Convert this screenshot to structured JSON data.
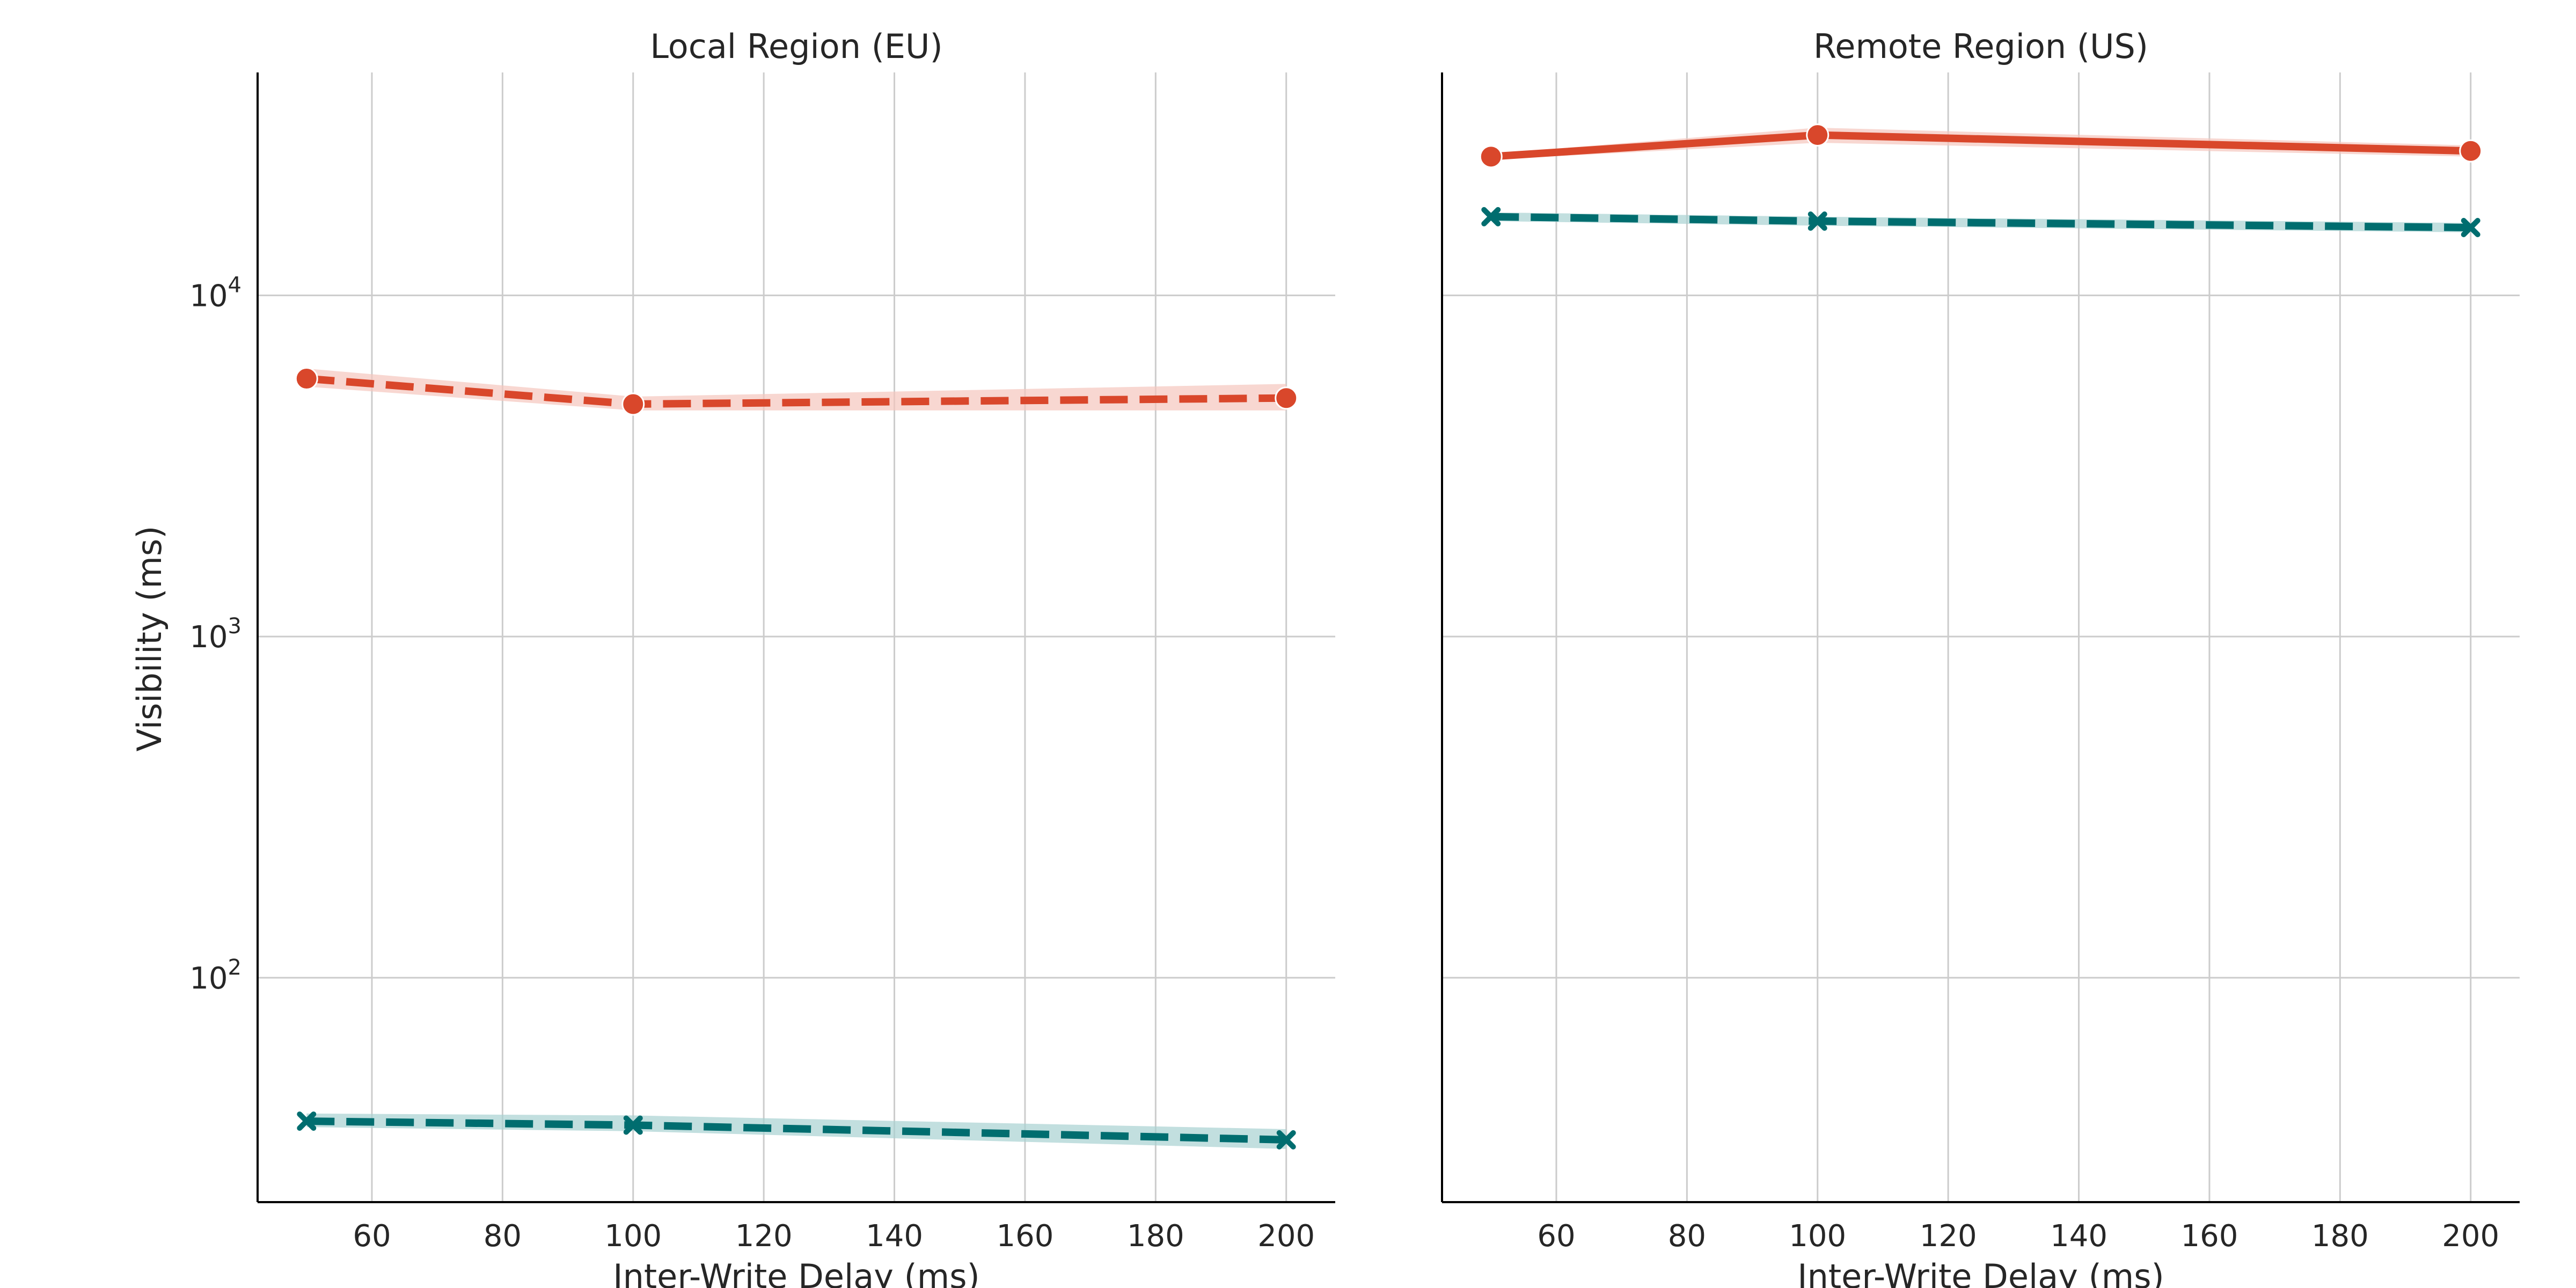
{
  "figure": {
    "ylabel": "Visibility (ms)",
    "colors": {
      "strong": "#d9472b",
      "eventual": "#006d6f",
      "strong_band": "#f5c6bd",
      "eventual_band": "#a8d2d2",
      "grid": "#cccccc",
      "axis": "#000000"
    }
  },
  "chart_data": [
    {
      "type": "line",
      "title": "Local Region (EU)",
      "xlabel": "Inter-Write Delay (ms)",
      "ylabel": "Visibility (ms)",
      "yscale": "log",
      "xlim": [
        42.5,
        207.5
      ],
      "ylim": [
        22,
        45000
      ],
      "xticks": [
        60,
        80,
        100,
        120,
        140,
        160,
        180,
        200
      ],
      "yticks": [
        100,
        1000,
        10000
      ],
      "grid": true,
      "x": [
        50,
        100,
        200
      ],
      "series": [
        {
          "color": "#d9472b",
          "marker": "circle",
          "line": "dashed",
          "values": [
            5700,
            4800,
            5000
          ],
          "lower": [
            5400,
            4600,
            4600
          ],
          "upper": [
            6100,
            5050,
            5500
          ]
        },
        {
          "color": "#006d6f",
          "marker": "x",
          "line": "dashed",
          "values": [
            38,
            37,
            33.5
          ],
          "lower": [
            36.5,
            35.5,
            31.5
          ],
          "upper": [
            40,
            39.5,
            36
          ]
        }
      ]
    },
    {
      "type": "line",
      "title": "Remote Region (US)",
      "xlabel": "Inter-Write Delay (ms)",
      "ylabel": "",
      "yscale": "log",
      "xlim": [
        42.5,
        207.5
      ],
      "ylim": [
        22,
        45000
      ],
      "xticks": [
        60,
        80,
        100,
        120,
        140,
        160,
        180,
        200
      ],
      "yticks": [
        100,
        1000,
        10000
      ],
      "grid": true,
      "x": [
        50,
        100,
        200
      ],
      "series": [
        {
          "color": "#d9472b",
          "marker": "circle",
          "line": "solid",
          "values": [
            25500,
            29500,
            26500
          ],
          "lower": [
            25000,
            28000,
            25500
          ],
          "upper": [
            26000,
            31000,
            27500
          ]
        },
        {
          "color": "#006d6f",
          "marker": "x",
          "line": "dashed",
          "values": [
            17000,
            16500,
            15800
          ],
          "lower": [
            16500,
            16000,
            15300
          ],
          "upper": [
            17500,
            17000,
            16300
          ]
        }
      ]
    }
  ]
}
